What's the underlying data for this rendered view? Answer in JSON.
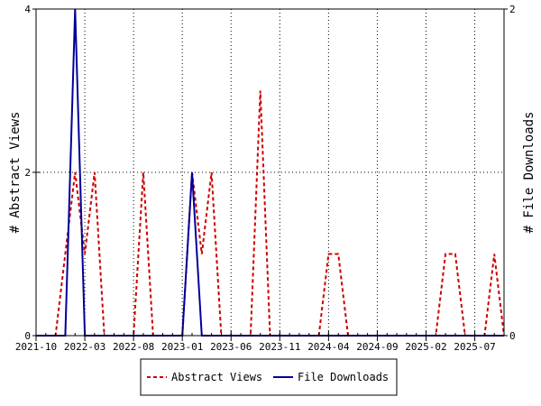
{
  "chart_data": {
    "type": "line",
    "x_tick_labels": [
      "2021-10",
      "2022-03",
      "2022-08",
      "2023-01",
      "2023-06",
      "2023-11",
      "2024-04",
      "2024-09",
      "2025-02",
      "2025-07"
    ],
    "x_range": [
      "2021-10",
      "2025-10"
    ],
    "ylabel_left": "# Abstract Views",
    "ylabel_right": "# File Downloads",
    "ylim_left": [
      0,
      4
    ],
    "ylim_right": [
      0,
      2
    ],
    "yticks_left": [
      "0",
      "2",
      "4"
    ],
    "yticks_right": [
      "0",
      "2"
    ],
    "legend_position": "bottom-center",
    "series": [
      {
        "name": "Abstract Views",
        "axis": "left",
        "color": "#cc0000",
        "style": "dashed",
        "points": [
          [
            "2021-10",
            0
          ],
          [
            "2021-11",
            0
          ],
          [
            "2021-12",
            0
          ],
          [
            "2022-01",
            1
          ],
          [
            "2022-02",
            2
          ],
          [
            "2022-03",
            1
          ],
          [
            "2022-04",
            2
          ],
          [
            "2022-05",
            0
          ],
          [
            "2022-06",
            0
          ],
          [
            "2022-07",
            0
          ],
          [
            "2022-08",
            0
          ],
          [
            "2022-09",
            2
          ],
          [
            "2022-10",
            0
          ],
          [
            "2022-11",
            0
          ],
          [
            "2022-12",
            0
          ],
          [
            "2023-01",
            0
          ],
          [
            "2023-02",
            2
          ],
          [
            "2023-03",
            1
          ],
          [
            "2023-04",
            2
          ],
          [
            "2023-05",
            0
          ],
          [
            "2023-06",
            0
          ],
          [
            "2023-07",
            0
          ],
          [
            "2023-08",
            0
          ],
          [
            "2023-09",
            3
          ],
          [
            "2023-10",
            0
          ],
          [
            "2023-11",
            0
          ],
          [
            "2023-12",
            0
          ],
          [
            "2024-01",
            0
          ],
          [
            "2024-02",
            0
          ],
          [
            "2024-03",
            0
          ],
          [
            "2024-04",
            1
          ],
          [
            "2024-05",
            1
          ],
          [
            "2024-06",
            0
          ],
          [
            "2024-07",
            0
          ],
          [
            "2024-08",
            0
          ],
          [
            "2024-09",
            0
          ],
          [
            "2024-10",
            0
          ],
          [
            "2024-11",
            0
          ],
          [
            "2024-12",
            0
          ],
          [
            "2025-01",
            0
          ],
          [
            "2025-02",
            0
          ],
          [
            "2025-03",
            0
          ],
          [
            "2025-04",
            1
          ],
          [
            "2025-05",
            1
          ],
          [
            "2025-06",
            0
          ],
          [
            "2025-07",
            0
          ],
          [
            "2025-08",
            0
          ],
          [
            "2025-09",
            1
          ],
          [
            "2025-10",
            0
          ]
        ]
      },
      {
        "name": "File Downloads",
        "axis": "right",
        "color": "#000099",
        "style": "solid",
        "points": [
          [
            "2021-10",
            0
          ],
          [
            "2021-11",
            0
          ],
          [
            "2021-12",
            0
          ],
          [
            "2022-01",
            0
          ],
          [
            "2022-02",
            2
          ],
          [
            "2022-03",
            0
          ],
          [
            "2022-04",
            0
          ],
          [
            "2022-05",
            0
          ],
          [
            "2022-06",
            0
          ],
          [
            "2022-07",
            0
          ],
          [
            "2022-08",
            0
          ],
          [
            "2022-09",
            0
          ],
          [
            "2022-10",
            0
          ],
          [
            "2022-11",
            0
          ],
          [
            "2022-12",
            0
          ],
          [
            "2023-01",
            0
          ],
          [
            "2023-02",
            1
          ],
          [
            "2023-03",
            0
          ],
          [
            "2023-04",
            0
          ],
          [
            "2023-05",
            0
          ],
          [
            "2023-06",
            0
          ],
          [
            "2023-07",
            0
          ],
          [
            "2023-08",
            0
          ],
          [
            "2023-09",
            0
          ],
          [
            "2023-10",
            0
          ],
          [
            "2023-11",
            0
          ],
          [
            "2023-12",
            0
          ],
          [
            "2024-01",
            0
          ],
          [
            "2024-02",
            0
          ],
          [
            "2024-03",
            0
          ],
          [
            "2024-04",
            0
          ],
          [
            "2024-05",
            0
          ],
          [
            "2024-06",
            0
          ],
          [
            "2024-07",
            0
          ],
          [
            "2024-08",
            0
          ],
          [
            "2024-09",
            0
          ],
          [
            "2024-10",
            0
          ],
          [
            "2024-11",
            0
          ],
          [
            "2024-12",
            0
          ],
          [
            "2025-01",
            0
          ],
          [
            "2025-02",
            0
          ],
          [
            "2025-03",
            0
          ],
          [
            "2025-04",
            0
          ],
          [
            "2025-05",
            0
          ],
          [
            "2025-06",
            0
          ],
          [
            "2025-07",
            0
          ],
          [
            "2025-08",
            0
          ],
          [
            "2025-09",
            0
          ],
          [
            "2025-10",
            0
          ]
        ]
      }
    ]
  }
}
